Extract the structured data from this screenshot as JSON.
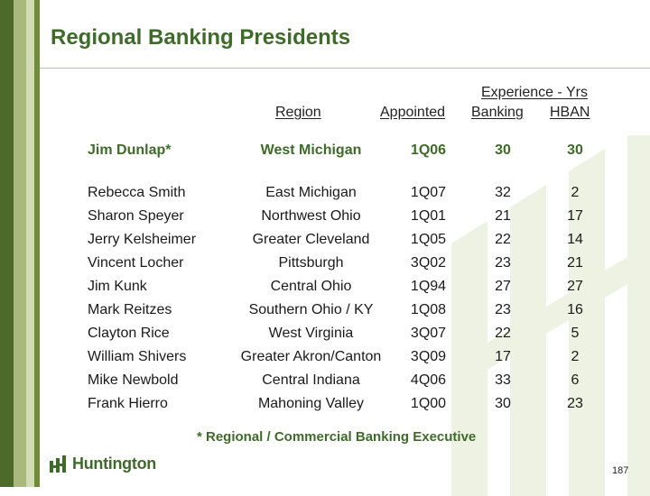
{
  "slide": {
    "title": "Regional Banking Presidents",
    "page_number": "187"
  },
  "table": {
    "group_header": "Experience - Yrs",
    "columns": {
      "region": "Region",
      "appointed": "Appointed",
      "banking": "Banking",
      "hban": "HBAN"
    },
    "featured": {
      "name": "Jim Dunlap*",
      "region": "West Michigan",
      "appointed": "1Q06",
      "banking": "30",
      "hban": "30"
    },
    "rows": [
      {
        "name": "Rebecca Smith",
        "region": "East Michigan",
        "appointed": "1Q07",
        "banking": "32",
        "hban": "2"
      },
      {
        "name": "Sharon Speyer",
        "region": "Northwest Ohio",
        "appointed": "1Q01",
        "banking": "21",
        "hban": "17"
      },
      {
        "name": "Jerry Kelsheimer",
        "region": "Greater Cleveland",
        "appointed": "1Q05",
        "banking": "22",
        "hban": "14"
      },
      {
        "name": "Vincent Locher",
        "region": "Pittsburgh",
        "appointed": "3Q02",
        "banking": "23",
        "hban": "21"
      },
      {
        "name": "Jim Kunk",
        "region": "Central Ohio",
        "appointed": "1Q94",
        "banking": "27",
        "hban": "27"
      },
      {
        "name": "Mark Reitzes",
        "region": "Southern Ohio / KY",
        "appointed": "1Q08",
        "banking": "23",
        "hban": "16"
      },
      {
        "name": "Clayton Rice",
        "region": "West Virginia",
        "appointed": "3Q07",
        "banking": "22",
        "hban": "5"
      },
      {
        "name": "William Shivers",
        "region": "Greater Akron/Canton",
        "appointed": "3Q09",
        "banking": "17",
        "hban": "2"
      },
      {
        "name": "Mike Newbold",
        "region": "Central Indiana",
        "appointed": "4Q06",
        "banking": "33",
        "hban": "6"
      },
      {
        "name": "Frank Hierro",
        "region": "Mahoning Valley",
        "appointed": "1Q00",
        "banking": "30",
        "hban": "23"
      }
    ],
    "footnote": "* Regional / Commercial Banking Executive"
  },
  "branding": {
    "logo_text": "Huntington",
    "logo_icon": "huntington-bars-icon"
  },
  "colors": {
    "accent_green": "#3f6b2a",
    "band_dark": "#4e6a2a",
    "band_light": "#a9b97b",
    "watermark": "#eef2e2"
  }
}
